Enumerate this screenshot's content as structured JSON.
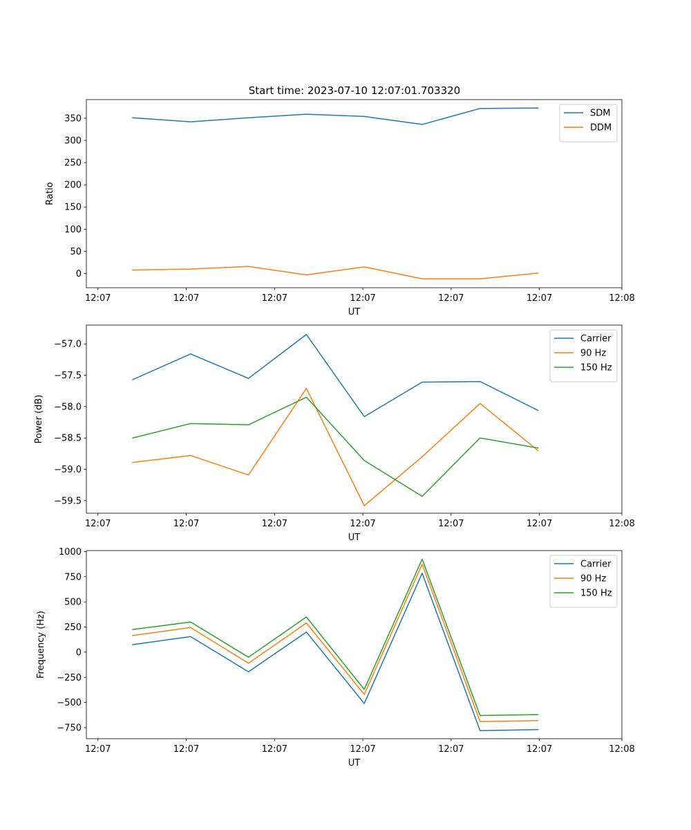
{
  "figure": {
    "title": "Start time: 2023-07-10 12:07:01.703320"
  },
  "chart_data": [
    {
      "type": "line",
      "title": "Start time: 2023-07-10 12:07:01.703320",
      "xlabel": "UT",
      "ylabel": "Ratio",
      "x": [
        1,
        2,
        3,
        4,
        5,
        6,
        7,
        8
      ],
      "xlim": [
        0.2,
        9.45
      ],
      "xticks": [
        0.4,
        1.925,
        3.45,
        4.975,
        6.5,
        8.025,
        9.45
      ],
      "xtick_labels": [
        "12:07",
        "12:07",
        "12:07",
        "12:07",
        "12:07",
        "12:07",
        "12:08"
      ],
      "ylim": [
        -32,
        392
      ],
      "yticks": [
        0,
        50,
        100,
        150,
        200,
        250,
        300,
        350
      ],
      "ytick_labels": [
        "0",
        "50",
        "100",
        "150",
        "200",
        "250",
        "300",
        "350"
      ],
      "legend_position": "top-right",
      "series": [
        {
          "name": "SDM",
          "color": "#1f77b4",
          "values": [
            351,
            342,
            351,
            359,
            354,
            336,
            372,
            373
          ]
        },
        {
          "name": "DDM",
          "color": "#ff7f0e",
          "values": [
            8,
            10,
            16,
            -3,
            15,
            -12,
            -12,
            1
          ]
        }
      ]
    },
    {
      "type": "line",
      "title": "",
      "xlabel": "UT",
      "ylabel": "Power (dB)",
      "x": [
        1,
        2,
        3,
        4,
        5,
        6,
        7,
        8
      ],
      "xlim": [
        0.2,
        9.45
      ],
      "xticks": [
        0.4,
        1.925,
        3.45,
        4.975,
        6.5,
        8.025,
        9.45
      ],
      "xtick_labels": [
        "12:07",
        "12:07",
        "12:07",
        "12:07",
        "12:07",
        "12:07",
        "12:08"
      ],
      "ylim": [
        -59.7,
        -56.7
      ],
      "yticks": [
        -59.5,
        -59.0,
        -58.5,
        -58.0,
        -57.5,
        -57.0
      ],
      "ytick_labels": [
        "−59.5",
        "−59.0",
        "−58.5",
        "−58.0",
        "−57.5",
        "−57.0"
      ],
      "legend_position": "top-right",
      "series": [
        {
          "name": "Carrier",
          "color": "#1f77b4",
          "values": [
            -57.57,
            -57.16,
            -57.55,
            -56.85,
            -58.16,
            -57.61,
            -57.6,
            -58.06
          ]
        },
        {
          "name": "90 Hz",
          "color": "#ff7f0e",
          "values": [
            -58.89,
            -58.78,
            -59.09,
            -57.71,
            -59.58,
            -58.8,
            -57.95,
            -58.7
          ]
        },
        {
          "name": "150 Hz",
          "color": "#2ca02c",
          "values": [
            -58.5,
            -58.27,
            -58.29,
            -57.85,
            -58.86,
            -59.43,
            -58.5,
            -58.66
          ]
        }
      ]
    },
    {
      "type": "line",
      "title": "",
      "xlabel": "UT",
      "ylabel": "Frequency (Hz)",
      "x": [
        1,
        2,
        3,
        4,
        5,
        6,
        7,
        8
      ],
      "xlim": [
        0.2,
        9.45
      ],
      "xticks": [
        0.4,
        1.925,
        3.45,
        4.975,
        6.5,
        8.025,
        9.45
      ],
      "xtick_labels": [
        "12:07",
        "12:07",
        "12:07",
        "12:07",
        "12:07",
        "12:07",
        "12:08"
      ],
      "ylim": [
        -860,
        1010
      ],
      "yticks": [
        -750,
        -500,
        -250,
        0,
        250,
        500,
        750,
        1000
      ],
      "ytick_labels": [
        "−750",
        "−500",
        "−250",
        "0",
        "250",
        "500",
        "750",
        "1000"
      ],
      "legend_position": "top-right",
      "series": [
        {
          "name": "Carrier",
          "color": "#1f77b4",
          "values": [
            75,
            155,
            -195,
            200,
            -510,
            785,
            -780,
            -770
          ]
        },
        {
          "name": "90 Hz",
          "color": "#ff7f0e",
          "values": [
            165,
            245,
            -110,
            290,
            -420,
            875,
            -690,
            -680
          ]
        },
        {
          "name": "150 Hz",
          "color": "#2ca02c",
          "values": [
            225,
            300,
            -50,
            350,
            -370,
            925,
            -630,
            -620
          ]
        }
      ]
    }
  ]
}
